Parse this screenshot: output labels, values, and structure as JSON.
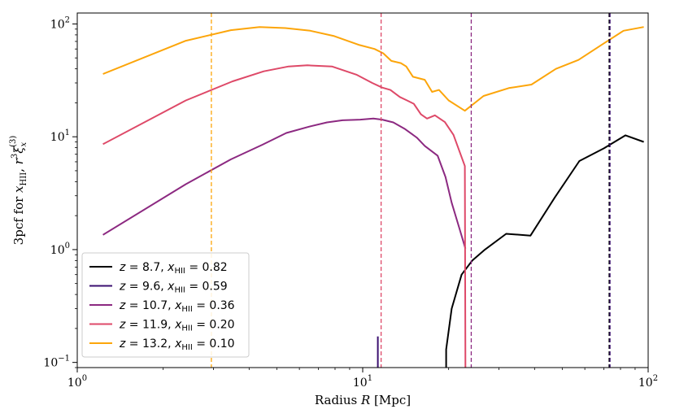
{
  "chart_data": {
    "type": "line",
    "xscale": "log",
    "yscale": "log",
    "xlim": [
      1,
      100
    ],
    "ylim": [
      0.09,
      125
    ],
    "xlabel": "Radius R [Mpc]",
    "ylabel": "3pcf for x_HII, r^3 ξ_x^(3)",
    "x_ticks": [
      1,
      10,
      100
    ],
    "x_tick_labels": [
      "10^0",
      "10^1",
      "10^2"
    ],
    "y_ticks": [
      0.1,
      1,
      10,
      100
    ],
    "y_tick_labels": [
      "10^-1",
      "10^0",
      "10^1",
      "10^2"
    ],
    "legend_position": "lower-left",
    "series": [
      {
        "name": "z = 8.7, x_HII = 0.82",
        "z": "8.7",
        "xhii": "0.82",
        "color": "#000000",
        "x": [
          19.6,
          19.6,
          20.5,
          22.2,
          24.2,
          26.8,
          31.8,
          38.7,
          47.1,
          57.4,
          70.0,
          83.3,
          96.5
        ],
        "y": [
          0.09,
          0.13,
          0.3,
          0.6,
          0.8,
          1.0,
          1.38,
          1.33,
          2.9,
          6.1,
          7.9,
          10.3,
          9.0
        ],
        "vline": 73.0
      },
      {
        "name": "z = 9.6, x_HII = 0.59",
        "z": "9.6",
        "xhii": "0.59",
        "color": "#3b0f70",
        "x": [
          11.3,
          11.3
        ],
        "y": [
          0.09,
          0.17
        ],
        "vline": 73.5
      },
      {
        "name": "z = 10.7, x_HII = 0.36",
        "z": "10.7",
        "xhii": "0.36",
        "color": "#8c2981",
        "x": [
          1.23,
          2.4,
          3.45,
          4.45,
          5.4,
          6.5,
          7.5,
          8.5,
          9.8,
          10.9,
          11.7,
          12.8,
          14.0,
          15.5,
          16.5,
          18.3,
          19.5,
          20.5,
          21.8,
          22.9
        ],
        "y": [
          1.35,
          3.8,
          6.3,
          8.5,
          10.8,
          12.3,
          13.4,
          14.0,
          14.2,
          14.5,
          14.2,
          13.4,
          11.8,
          9.8,
          8.3,
          6.8,
          4.4,
          2.6,
          1.55,
          1.02
        ],
        "vline": 24.0
      },
      {
        "name": "z = 11.9, x_HII = 0.20",
        "z": "11.9",
        "xhii": "0.20",
        "color": "#de4968",
        "x": [
          1.23,
          2.4,
          3.5,
          4.5,
          5.5,
          6.4,
          7.8,
          9.5,
          10.8,
          11.7,
          12.5,
          13.5,
          14.3,
          15.1,
          16.0,
          16.8,
          17.9,
          19.4,
          20.8,
          22.8,
          22.85,
          22.9
        ],
        "y": [
          8.6,
          21.0,
          31.0,
          38.0,
          42.0,
          43.0,
          42.0,
          35.5,
          30.0,
          27.3,
          26.0,
          22.5,
          21.0,
          19.6,
          15.8,
          14.5,
          15.5,
          13.5,
          10.4,
          5.5,
          0.5,
          0.09
        ],
        "vline": 11.6
      },
      {
        "name": "z = 13.2, x_HII = 0.10",
        "z": "13.2",
        "xhii": "0.10",
        "color": "#fca50a",
        "x": [
          1.23,
          2.4,
          3.45,
          4.35,
          5.35,
          6.55,
          7.95,
          9.75,
          11.0,
          11.8,
          12.6,
          13.6,
          14.2,
          15.0,
          16.5,
          17.5,
          18.5,
          20.0,
          22.8,
          26.5,
          32.5,
          39.0,
          47.5,
          57.0,
          68.5,
          82.0,
          96.5
        ],
        "y": [
          36.0,
          71.0,
          88.0,
          94.0,
          92.0,
          87.0,
          78.0,
          65.0,
          60.0,
          55.0,
          47.0,
          45.0,
          42.0,
          34.0,
          32.0,
          25.0,
          26.0,
          21.0,
          17.0,
          23.0,
          27.0,
          29.0,
          40.0,
          48.0,
          65.0,
          87.0,
          94.0
        ],
        "vline": 2.95
      }
    ]
  }
}
